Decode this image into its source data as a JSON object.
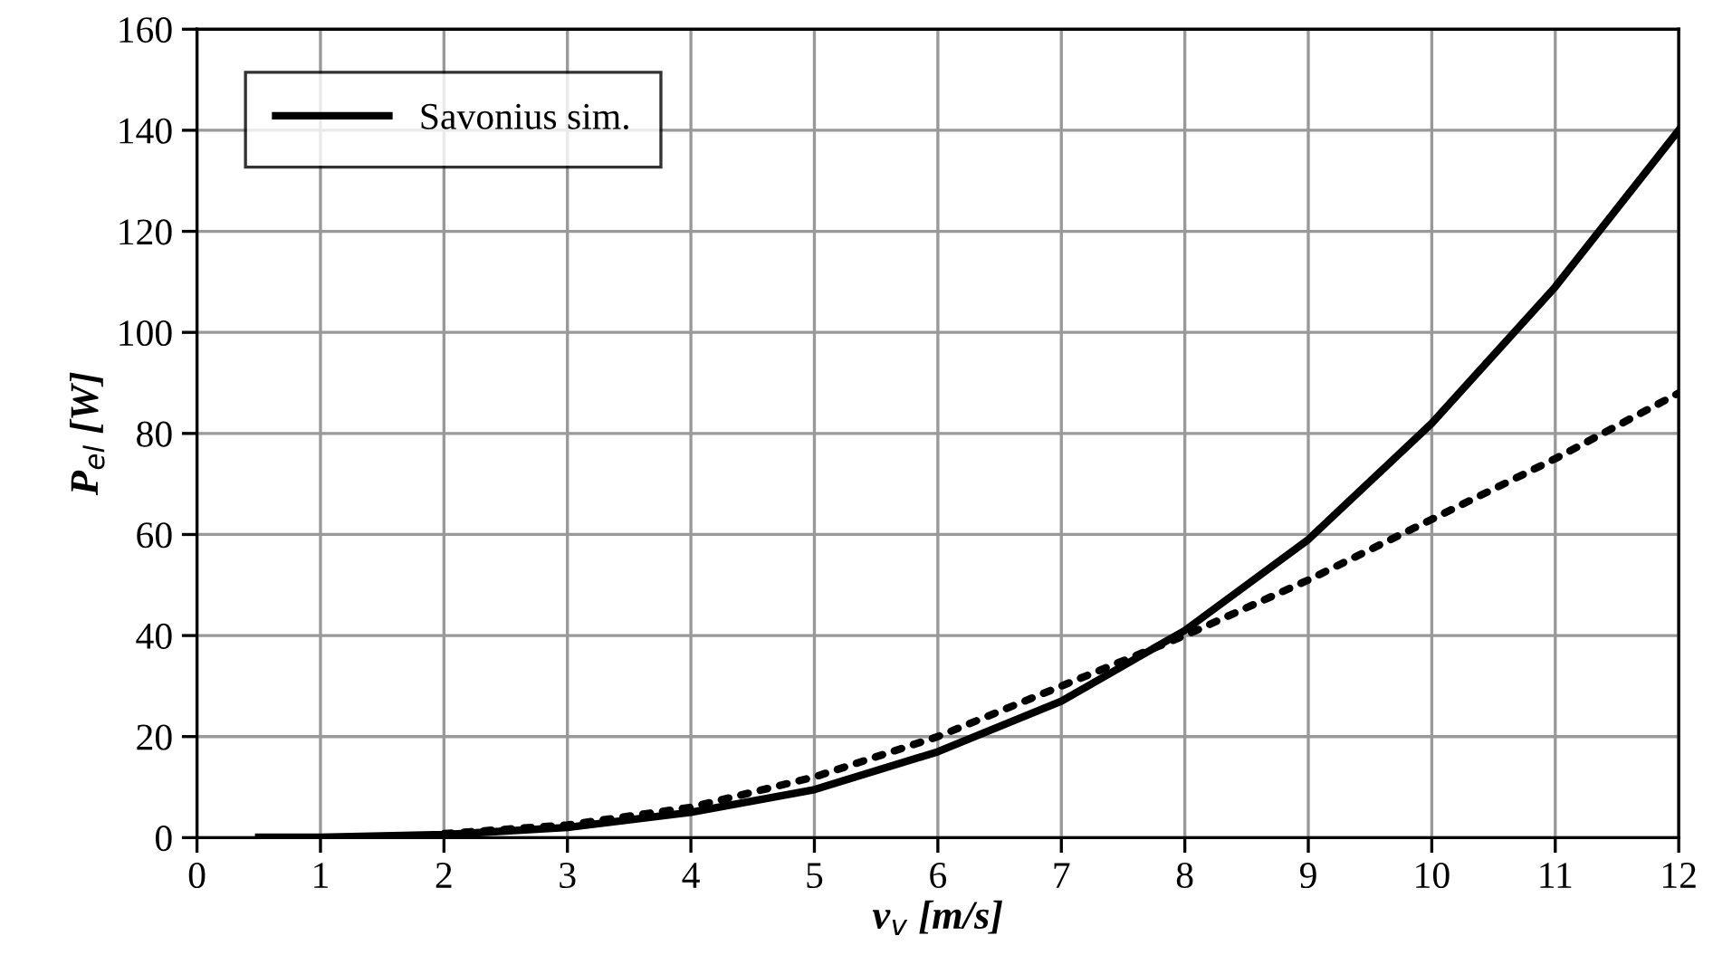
{
  "chart_data": {
    "type": "line",
    "xlabel": "v$_{v}$ [m/s]",
    "ylabel": "P$_{el}$ [W]",
    "xlim": [
      0,
      12
    ],
    "ylim": [
      0,
      160
    ],
    "xticks": [
      0,
      1,
      2,
      3,
      4,
      5,
      6,
      7,
      8,
      9,
      10,
      11,
      12
    ],
    "yticks": [
      0,
      20,
      40,
      60,
      80,
      100,
      120,
      140,
      160
    ],
    "grid": true,
    "legend": "top left",
    "series": [
      {
        "color": "#000000",
        "line_style": "dotted",
        "x": [
          2,
          3,
          4,
          5,
          6,
          7,
          8,
          9,
          10,
          11,
          12
        ],
        "values": [
          0.8,
          2.5,
          6,
          12,
          20,
          30,
          40,
          51,
          63,
          75,
          88
        ]
      },
      {
        "name": "Savonius sim.",
        "color": "#000000",
        "line_style": "solid",
        "x": [
          0.5,
          1,
          2,
          3,
          4,
          5,
          6,
          7,
          8,
          9,
          10,
          11,
          12
        ],
        "values": [
          0.1,
          0.1,
          0.6,
          2,
          5,
          9.5,
          17,
          27,
          41,
          59,
          82,
          109,
          140
        ]
      }
    ]
  }
}
